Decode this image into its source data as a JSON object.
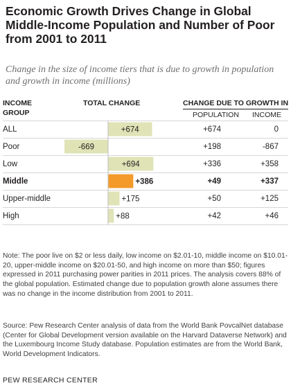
{
  "title": "Economic Growth Drives Change in Global Middle-Income Population and Number of Poor from 2001 to 2011",
  "subtitle": "Change in the size of income tiers that is due to growth in population and growth in income (millions)",
  "headers": {
    "group_line1": "INCOME",
    "group_line2": "GROUP",
    "total": "TOTAL CHANGE",
    "growth": "CHANGE DUE TO GROWTH IN",
    "population": "POPULATION",
    "income": "INCOME"
  },
  "colors": {
    "bar_default": "#dfe3b6",
    "bar_highlight": "#f39a2b",
    "text": "#231f20",
    "rule": "#d6d6d6"
  },
  "chart_data": {
    "type": "bar",
    "orientation": "horizontal",
    "categories": [
      "ALL",
      "Poor",
      "Low",
      "Middle",
      "Upper-middle",
      "High"
    ],
    "series": [
      {
        "values": [
          674,
          -669,
          694,
          386,
          175,
          88
        ]
      }
    ],
    "labels": [
      "+674",
      "-669",
      "+694",
      "+386",
      "+175",
      "+88"
    ],
    "highlight": "Middle"
  },
  "rows": [
    {
      "group": "ALL",
      "total": "+674",
      "population": "+674",
      "income": "0",
      "bold": false
    },
    {
      "group": "Poor",
      "total": "-669",
      "population": "+198",
      "income": "-867",
      "bold": false
    },
    {
      "group": "Low",
      "total": "+694",
      "population": "+336",
      "income": "+358",
      "bold": false
    },
    {
      "group": "Middle",
      "total": "+386",
      "population": "+49",
      "income": "+337",
      "bold": true
    },
    {
      "group": "Upper-middle",
      "total": "+175",
      "population": "+50",
      "income": "+125",
      "bold": false
    },
    {
      "group": "High",
      "total": "+88",
      "population": "+42",
      "income": "+46",
      "bold": false
    }
  ],
  "note": "Note: The poor live on $2 or less daily, low income on $2.01-10, middle income on $10.01-20, upper-middle income on $20.01-50, and high income on more than $50; figures expressed in 2011 purchasing power parities in 2011 prices. The analysis covers 88% of the global population. Estimated change due to population growth alone assumes there was no change in the income distribution from 2001 to 2011.",
  "source": "Source: Pew Research Center analysis of data from the World Bank PovcalNet database (Center for Global Development version available on the Harvard Dataverse Network) and the Luxembourg Income Study database. Population estimates are from the World Bank, World Development Indicators.",
  "footer": "PEW RESEARCH CENTER"
}
